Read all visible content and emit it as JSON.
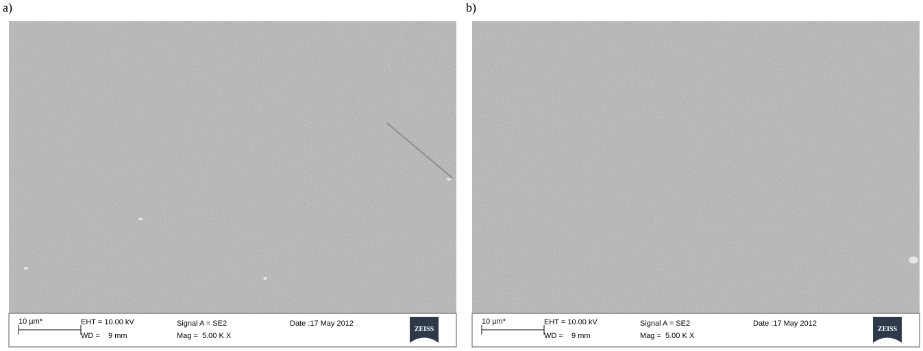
{
  "panels": [
    {
      "label": "a)",
      "scale_bar": "10 µm*",
      "eht": "EHT = 10.00 kV",
      "wd": "WD =    9 mm",
      "signal": "Signal A = SE2",
      "mag": "Mag =  5.00 K X",
      "date": "Date :17 May 2012",
      "logo": "ZEISS"
    },
    {
      "label": "b)",
      "scale_bar": "10 µm*",
      "eht": "EHT = 10.00 kV",
      "wd": "WD =    9 mm",
      "signal": "Signal A = SE2",
      "mag": "Mag =  5.00 K X",
      "date": "Date :17 May 2012",
      "logo": "ZEISS"
    }
  ]
}
